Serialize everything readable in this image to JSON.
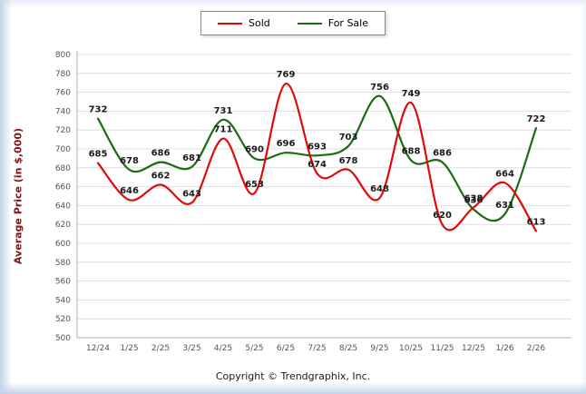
{
  "chart_data": {
    "type": "line",
    "title": "",
    "ylabel": "Average Price (in $,000)",
    "xlabel": "",
    "categories": [
      "12/24",
      "1/25",
      "2/25",
      "3/25",
      "4/25",
      "5/25",
      "6/25",
      "7/25",
      "8/25",
      "9/25",
      "10/25",
      "11/25",
      "12/25",
      "1/26",
      "2/26"
    ],
    "series": [
      {
        "name": "Sold",
        "color": "#e00a0a",
        "values": [
          685,
          646,
          662,
          643,
          711,
          653,
          769,
          674,
          678,
          648,
          749,
          620,
          638,
          664,
          613
        ]
      },
      {
        "name": "For Sale",
        "color": "#1a6b12",
        "values": [
          732,
          678,
          686,
          681,
          731,
          690,
          696,
          693,
          703,
          756,
          688,
          686,
          636,
          631,
          722
        ]
      }
    ],
    "ylim": [
      500,
      800
    ],
    "ytick_step": 20,
    "grid": true,
    "legend_position": "top-center",
    "label_color": "#1a1a1a",
    "gridline_color": "#dcdfe3",
    "axis_color": "#a9b1ba",
    "tick_label_color": "#555555"
  },
  "footer": {
    "copyright": "Copyright © Trendgraphix, Inc."
  }
}
